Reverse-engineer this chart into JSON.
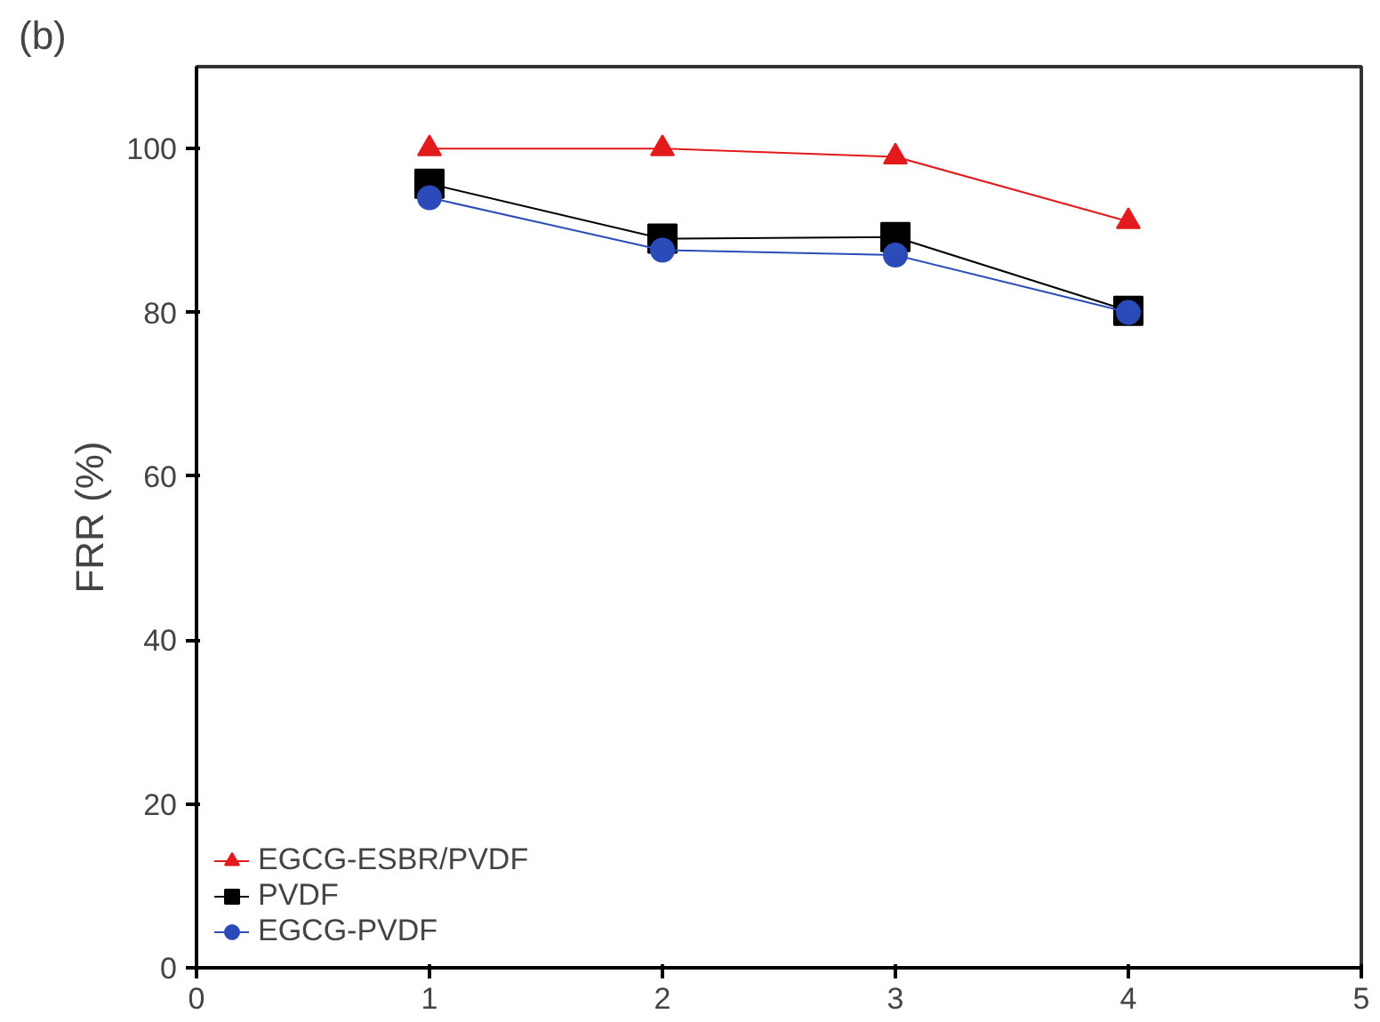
{
  "chart_data": {
    "type": "line",
    "title": "(b)",
    "ylabel": "FRR (%)",
    "x": [
      1,
      2,
      3,
      4
    ],
    "xlim": [
      0,
      5
    ],
    "xticks": [
      0,
      1,
      2,
      3,
      4,
      5
    ],
    "ylim": [
      0,
      110
    ],
    "yticks": [
      0,
      20,
      40,
      60,
      80,
      100
    ],
    "grid": false,
    "legend": "bottom left",
    "series": [
      {
        "name": "EGCG-ESBR/PVDF",
        "color": "#e31a1c",
        "marker": "triangle",
        "values": [
          100,
          100,
          99,
          91.1
        ]
      },
      {
        "name": "PVDF",
        "color": "#000000",
        "marker": "square",
        "values": [
          95.7,
          89,
          89.2,
          80.2
        ]
      },
      {
        "name": "EGCG-PVDF",
        "color": "#2b4cb8",
        "marker": "circle",
        "values": [
          94,
          87.6,
          87,
          80
        ]
      }
    ]
  }
}
